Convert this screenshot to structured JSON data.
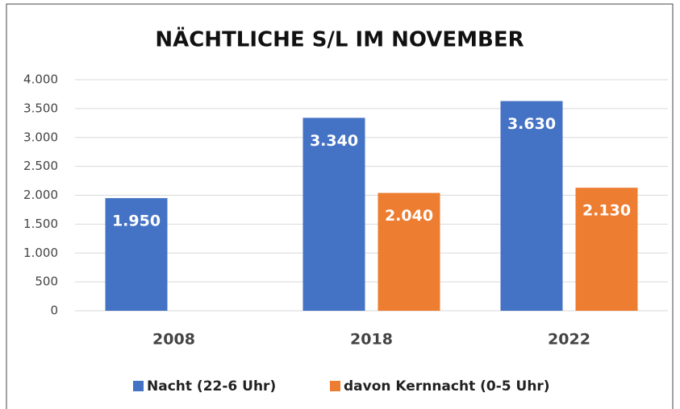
{
  "chart_data": {
    "type": "bar",
    "title": "NÄCHTLICHE S/L IM NOVEMBER",
    "categories": [
      "2008",
      "2018",
      "2022"
    ],
    "series": [
      {
        "name": "Nacht (22-6 Uhr)",
        "color": "#4472c4",
        "values": [
          1950,
          3340,
          3630
        ],
        "value_labels": [
          "1.950",
          "3.340",
          "3.630"
        ]
      },
      {
        "name": "davon Kernnacht (0-5 Uhr)",
        "color": "#ed7d31",
        "values": [
          null,
          2040,
          2130
        ],
        "value_labels": [
          null,
          "2.040",
          "2.130"
        ]
      }
    ],
    "ylim": [
      0,
      4000
    ],
    "yticks": [
      0,
      500,
      {
        "value": 1000,
        "label": "1.000"
      },
      {
        "value": 1500,
        "label": "1.500"
      },
      {
        "value": 2000,
        "label": "2.000"
      },
      {
        "value": 2500,
        "label": "2.500"
      },
      {
        "value": 3000,
        "label": "3.000"
      },
      {
        "value": 3500,
        "label": "3.500"
      },
      {
        "value": 4000,
        "label": "4.000"
      }
    ],
    "grid": true,
    "legend": "bottom"
  }
}
